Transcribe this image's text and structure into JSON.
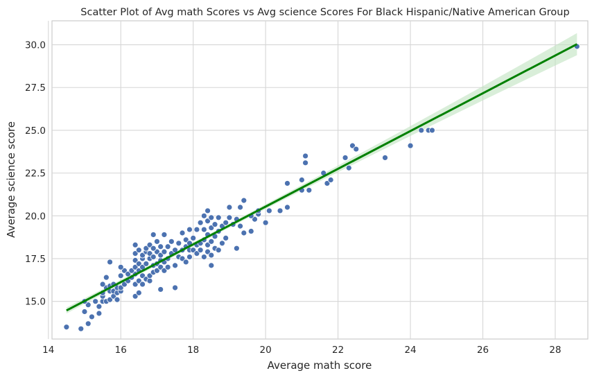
{
  "chart_data": {
    "type": "scatter",
    "title": "Scatter Plot of Avg math Scores vs  Avg science Scores For Black Hispanic/Native American Group",
    "xlabel": "Average math score",
    "ylabel": "Average science score",
    "xlim": [
      14.1,
      28.9
    ],
    "ylim": [
      12.8,
      31.4
    ],
    "xticks": [
      14,
      16,
      18,
      20,
      22,
      24,
      26,
      28
    ],
    "yticks": [
      15.0,
      17.5,
      20.0,
      22.5,
      25.0,
      27.5,
      30.0
    ],
    "ytick_labels": [
      "15.0",
      "17.5",
      "20.0",
      "22.5",
      "25.0",
      "27.5",
      "30.0"
    ],
    "grid": true,
    "colors": {
      "points": "#4c72b0",
      "regression": "#008000",
      "band": "#bfe3bf"
    },
    "regression": {
      "slope": 1.104,
      "intercept": -1.54,
      "x_range": [
        14.5,
        28.6
      ]
    },
    "points": [
      [
        14.5,
        13.5
      ],
      [
        14.9,
        13.4
      ],
      [
        15.1,
        13.7
      ],
      [
        15.2,
        14.1
      ],
      [
        15.4,
        14.3
      ],
      [
        15.0,
        14.4
      ],
      [
        15.1,
        14.8
      ],
      [
        15.4,
        14.7
      ],
      [
        15.0,
        15.0
      ],
      [
        15.3,
        15.0
      ],
      [
        15.5,
        15.0
      ],
      [
        15.5,
        15.3
      ],
      [
        15.6,
        15.0
      ],
      [
        15.7,
        15.1
      ],
      [
        15.8,
        15.3
      ],
      [
        15.9,
        15.1
      ],
      [
        15.5,
        15.5
      ],
      [
        15.7,
        15.6
      ],
      [
        15.8,
        15.6
      ],
      [
        15.9,
        15.5
      ],
      [
        16.0,
        15.6
      ],
      [
        15.6,
        15.8
      ],
      [
        15.7,
        15.9
      ],
      [
        15.9,
        15.8
      ],
      [
        16.0,
        15.8
      ],
      [
        15.5,
        16.0
      ],
      [
        15.8,
        16.0
      ],
      [
        16.1,
        16.0
      ],
      [
        15.6,
        16.4
      ],
      [
        16.2,
        16.2
      ],
      [
        16.0,
        16.5
      ],
      [
        16.1,
        16.8
      ],
      [
        16.3,
        16.4
      ],
      [
        16.4,
        16.0
      ],
      [
        16.5,
        16.2
      ],
      [
        16.6,
        16.0
      ],
      [
        16.2,
        16.6
      ],
      [
        16.4,
        16.6
      ],
      [
        16.3,
        16.8
      ],
      [
        15.7,
        17.3
      ],
      [
        16.0,
        17.0
      ],
      [
        16.4,
        17.0
      ],
      [
        16.5,
        16.8
      ],
      [
        16.6,
        16.5
      ],
      [
        16.7,
        16.3
      ],
      [
        16.8,
        16.2
      ],
      [
        16.4,
        15.3
      ],
      [
        16.5,
        15.5
      ],
      [
        16.4,
        17.4
      ],
      [
        16.5,
        17.2
      ],
      [
        16.6,
        17.5
      ],
      [
        16.6,
        17.0
      ],
      [
        16.7,
        17.2
      ],
      [
        16.8,
        16.5
      ],
      [
        16.9,
        16.7
      ],
      [
        17.0,
        16.8
      ],
      [
        16.9,
        17.1
      ],
      [
        16.8,
        17.5
      ],
      [
        17.0,
        17.2
      ],
      [
        17.1,
        17.0
      ],
      [
        17.2,
        16.8
      ],
      [
        17.3,
        17.0
      ],
      [
        17.1,
        17.4
      ],
      [
        17.2,
        17.3
      ],
      [
        16.4,
        17.8
      ],
      [
        16.6,
        17.7
      ],
      [
        16.7,
        17.9
      ],
      [
        16.8,
        17.8
      ],
      [
        16.9,
        17.6
      ],
      [
        17.0,
        17.9
      ],
      [
        17.1,
        17.7
      ],
      [
        17.2,
        17.9
      ],
      [
        16.4,
        18.3
      ],
      [
        16.5,
        18.0
      ],
      [
        16.7,
        18.1
      ],
      [
        16.8,
        18.3
      ],
      [
        16.9,
        18.1
      ],
      [
        17.0,
        18.5
      ],
      [
        17.1,
        18.2
      ],
      [
        16.9,
        18.9
      ],
      [
        17.3,
        17.5
      ],
      [
        17.4,
        17.8
      ],
      [
        17.5,
        18.0
      ],
      [
        17.3,
        18.2
      ],
      [
        17.4,
        18.5
      ],
      [
        17.2,
        18.9
      ],
      [
        17.6,
        17.6
      ],
      [
        17.7,
        17.5
      ],
      [
        17.8,
        17.3
      ],
      [
        17.9,
        17.6
      ],
      [
        17.7,
        18.0
      ],
      [
        17.8,
        18.2
      ],
      [
        17.9,
        18.0
      ],
      [
        17.6,
        18.4
      ],
      [
        17.8,
        18.6
      ],
      [
        17.9,
        18.4
      ],
      [
        18.0,
        18.0
      ],
      [
        18.1,
        18.3
      ],
      [
        18.0,
        18.7
      ],
      [
        17.7,
        19.0
      ],
      [
        17.9,
        19.2
      ],
      [
        17.1,
        15.7
      ],
      [
        17.5,
        15.8
      ],
      [
        17.5,
        17.1
      ],
      [
        18.1,
        17.8
      ],
      [
        18.2,
        18.0
      ],
      [
        18.3,
        17.6
      ],
      [
        18.4,
        17.9
      ],
      [
        18.5,
        17.7
      ],
      [
        18.6,
        18.1
      ],
      [
        18.2,
        18.4
      ],
      [
        18.3,
        18.6
      ],
      [
        18.4,
        18.3
      ],
      [
        18.5,
        18.5
      ],
      [
        18.6,
        18.8
      ],
      [
        18.4,
        18.9
      ],
      [
        18.3,
        19.2
      ],
      [
        18.5,
        19.3
      ],
      [
        18.6,
        19.5
      ],
      [
        18.2,
        19.6
      ],
      [
        18.4,
        19.7
      ],
      [
        18.5,
        19.9
      ],
      [
        18.3,
        20.0
      ],
      [
        18.4,
        20.3
      ],
      [
        18.1,
        19.2
      ],
      [
        18.5,
        17.1
      ],
      [
        18.7,
        18.0
      ],
      [
        18.8,
        18.4
      ],
      [
        18.9,
        18.7
      ],
      [
        18.7,
        19.1
      ],
      [
        18.8,
        19.4
      ],
      [
        18.9,
        19.6
      ],
      [
        19.0,
        19.9
      ],
      [
        19.1,
        19.5
      ],
      [
        19.2,
        19.8
      ],
      [
        18.7,
        19.9
      ],
      [
        19.0,
        20.5
      ],
      [
        19.3,
        20.5
      ],
      [
        19.4,
        20.9
      ],
      [
        19.3,
        19.4
      ],
      [
        19.4,
        19.0
      ],
      [
        19.2,
        18.1
      ],
      [
        19.6,
        19.1
      ],
      [
        19.7,
        19.8
      ],
      [
        19.8,
        20.1
      ],
      [
        19.6,
        20.0
      ],
      [
        19.8,
        20.3
      ],
      [
        20.0,
        19.6
      ],
      [
        20.1,
        20.3
      ],
      [
        20.4,
        20.3
      ],
      [
        20.6,
        20.5
      ],
      [
        20.6,
        21.9
      ],
      [
        21.0,
        22.1
      ],
      [
        21.0,
        21.5
      ],
      [
        21.1,
        23.1
      ],
      [
        21.1,
        23.5
      ],
      [
        21.2,
        21.5
      ],
      [
        21.6,
        22.5
      ],
      [
        21.7,
        21.9
      ],
      [
        21.8,
        22.1
      ],
      [
        22.2,
        23.4
      ],
      [
        22.3,
        22.8
      ],
      [
        22.4,
        24.1
      ],
      [
        22.5,
        23.9
      ],
      [
        23.3,
        23.4
      ],
      [
        24.0,
        24.1
      ],
      [
        24.3,
        25.0
      ],
      [
        24.5,
        25.0
      ],
      [
        24.6,
        25.0
      ],
      [
        28.6,
        29.9
      ]
    ]
  }
}
